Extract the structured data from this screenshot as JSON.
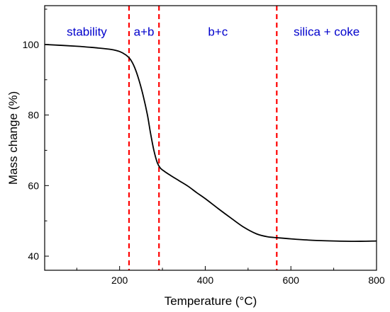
{
  "chart_data": {
    "type": "line",
    "title": "",
    "xlabel": "Temperature (°C)",
    "ylabel": "Mass change (%)",
    "xlim": [
      25,
      800
    ],
    "ylim": [
      36,
      111
    ],
    "xticks": [
      200,
      400,
      600,
      800
    ],
    "yticks": [
      40,
      60,
      80,
      100
    ],
    "grid": false,
    "series": [
      {
        "color": "#000000",
        "x": [
          25,
          100,
          150,
          180,
          200,
          215,
          225,
          235,
          245,
          255,
          265,
          272,
          280,
          288,
          295,
          305,
          320,
          340,
          360,
          380,
          400,
          430,
          460,
          490,
          520,
          545,
          570,
          600,
          650,
          700,
          750,
          800
        ],
        "y": [
          100,
          99.5,
          99.0,
          98.6,
          98.0,
          97.0,
          95.8,
          93.5,
          90.0,
          85.5,
          80.0,
          75.0,
          70.0,
          66.5,
          65.0,
          64.0,
          62.8,
          61.3,
          59.8,
          58.0,
          56.3,
          53.5,
          50.8,
          48.2,
          46.3,
          45.5,
          45.2,
          44.9,
          44.5,
          44.3,
          44.2,
          44.3
        ]
      }
    ],
    "vlines": {
      "color": "#ff0000",
      "x": [
        222,
        292,
        567
      ]
    },
    "regions": [
      {
        "label": "stability",
        "x_from": 25,
        "x_to": 222
      },
      {
        "label": "a+b",
        "x_from": 222,
        "x_to": 292
      },
      {
        "label": "b+c",
        "x_from": 292,
        "x_to": 567
      },
      {
        "label": "silica + coke",
        "x_from": 567,
        "x_to": 800
      }
    ],
    "region_label_y": 102.5,
    "region_label_color": "#0000cc"
  }
}
